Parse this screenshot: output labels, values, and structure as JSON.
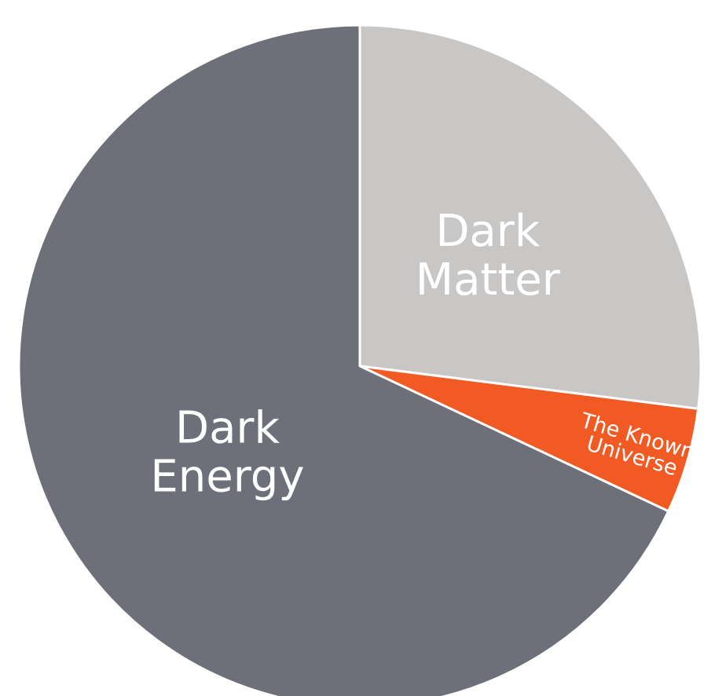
{
  "chart_data": {
    "type": "pie",
    "slices": [
      {
        "label_lines": [
          "Dark",
          "Matter"
        ],
        "value": 27,
        "color": "#c8c7c6"
      },
      {
        "label_lines": [
          "The Known",
          "Universe"
        ],
        "value": 5,
        "color": "#f15a22"
      },
      {
        "label_lines": [
          "Dark",
          "Energy"
        ],
        "value": 68,
        "color": "#6d7078"
      }
    ],
    "start": "12 o'clock",
    "direction": "clockwise",
    "slice_border_color": "#ffffff",
    "legend": "none"
  }
}
